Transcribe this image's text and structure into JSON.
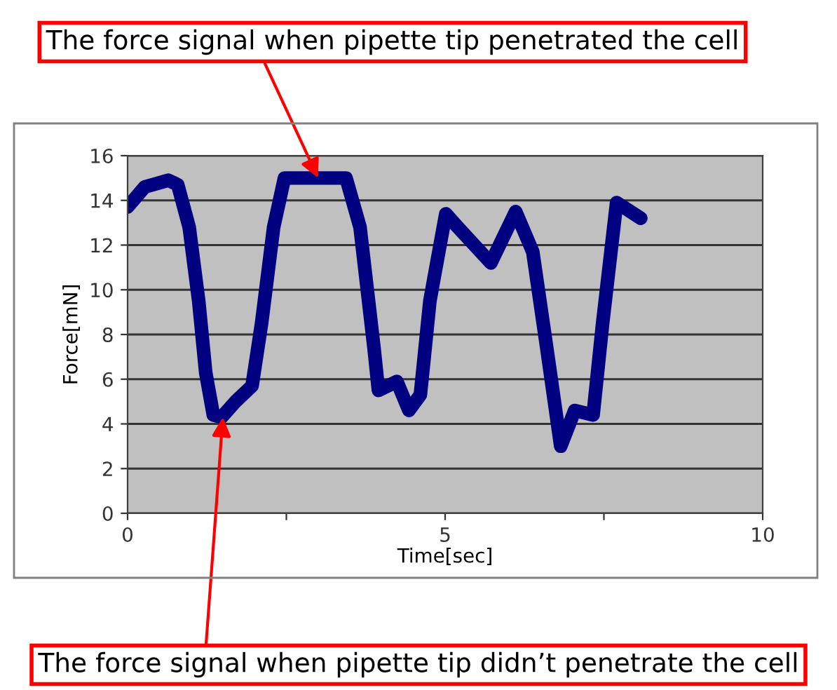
{
  "chart_data": {
    "type": "line",
    "xlabel": "Time[sec]",
    "ylabel": "Force[mN]",
    "x": [
      0,
      0.27,
      0.64,
      0.79,
      0.97,
      1.12,
      1.23,
      1.35,
      1.48,
      1.7,
      1.96,
      2.11,
      2.3,
      2.47,
      3.44,
      3.66,
      3.88,
      3.95,
      4.24,
      4.43,
      4.61,
      4.76,
      4.83,
      5.01,
      5.2,
      5.72,
      6.11,
      6.38,
      6.6,
      6.82,
      7.04,
      7.33,
      7.48,
      7.7,
      8.08
    ],
    "series": [
      {
        "color": "#000080",
        "values": [
          13.7,
          14.6,
          14.9,
          14.7,
          12.8,
          9.5,
          6.3,
          4.4,
          4.3,
          5.0,
          5.7,
          8.5,
          12.8,
          15.0,
          15.0,
          12.8,
          7.4,
          5.5,
          5.9,
          4.6,
          5.3,
          9.5,
          10.6,
          13.4,
          12.8,
          11.2,
          13.5,
          11.7,
          7.4,
          3.0,
          4.6,
          4.4,
          8.5,
          13.9,
          13.2
        ]
      }
    ],
    "xlim": [
      0,
      10
    ],
    "xticks": [
      0,
      {
        "value": 2.5,
        "label": null
      },
      5,
      {
        "value": 7.5,
        "label": null
      },
      10
    ],
    "ylim": [
      0,
      16
    ],
    "yticks": [
      0,
      2,
      4,
      6,
      8,
      10,
      12,
      14,
      16
    ],
    "grid": "y",
    "legend": false,
    "marker": "none",
    "line_style": "solid",
    "annotations": [
      {
        "text": "The force signal when pipette tip penetrated the cell",
        "x": 3.0,
        "y": 15.0
      },
      {
        "text": "The force signal when pipette tip didn’t penetrate the cell",
        "x": 1.5,
        "y": 4.3
      }
    ]
  }
}
